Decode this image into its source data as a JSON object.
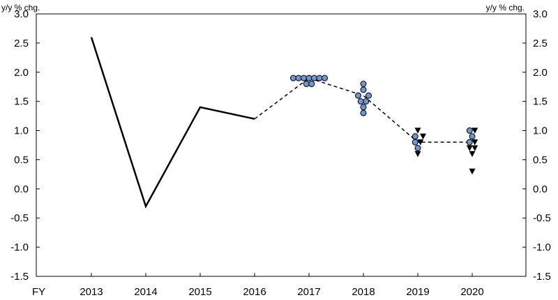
{
  "chart_data": {
    "type": "line",
    "y_unit_label_left": "y/y % chg.",
    "y_unit_label_right": "y/y % chg.",
    "x_prefix_label": "FY",
    "categories": [
      "2013",
      "2014",
      "2015",
      "2016",
      "2017",
      "2018",
      "2019",
      "2020"
    ],
    "ylim": [
      -1.5,
      3.0
    ],
    "yticks": [
      -1.5,
      -1.0,
      -0.5,
      0.0,
      0.5,
      1.0,
      1.5,
      2.0,
      2.5,
      3.0
    ],
    "ytick_labels": [
      "-1.5",
      "-1.0",
      "-0.5",
      "0.0",
      "0.5",
      "1.0",
      "1.5",
      "2.0",
      "2.5",
      "3.0"
    ],
    "grid": false,
    "actual_line": {
      "style": "solid",
      "points": [
        {
          "x": "2013",
          "y": 2.6
        },
        {
          "x": "2014",
          "y": -0.3
        },
        {
          "x": "2015",
          "y": 1.4
        },
        {
          "x": "2016",
          "y": 1.2
        }
      ]
    },
    "median_line": {
      "style": "dashed",
      "points": [
        {
          "x": "2016",
          "y": 1.2
        },
        {
          "x": "2017",
          "y": 1.9
        },
        {
          "x": "2018",
          "y": 1.6
        },
        {
          "x": "2019",
          "y": 0.8
        },
        {
          "x": "2020",
          "y": 0.8
        }
      ]
    },
    "circle_markers": {
      "color": "#6f96d2",
      "points": [
        {
          "x": "2017",
          "offset": -3,
          "y": 1.9
        },
        {
          "x": "2017",
          "offset": -2,
          "y": 1.9
        },
        {
          "x": "2017",
          "offset": -1,
          "y": 1.9
        },
        {
          "x": "2017",
          "offset": -0.5,
          "y": 1.8
        },
        {
          "x": "2017",
          "offset": 0,
          "y": 1.9
        },
        {
          "x": "2017",
          "offset": 0.5,
          "y": 1.8
        },
        {
          "x": "2017",
          "offset": 1,
          "y": 1.9
        },
        {
          "x": "2017",
          "offset": 2,
          "y": 1.9
        },
        {
          "x": "2017",
          "offset": 3,
          "y": 1.9
        },
        {
          "x": "2018",
          "offset": 0,
          "y": 1.8
        },
        {
          "x": "2018",
          "offset": 0,
          "y": 1.7
        },
        {
          "x": "2018",
          "offset": -1,
          "y": 1.6
        },
        {
          "x": "2018",
          "offset": 1,
          "y": 1.6
        },
        {
          "x": "2018",
          "offset": -0.5,
          "y": 1.5
        },
        {
          "x": "2018",
          "offset": 0.5,
          "y": 1.5
        },
        {
          "x": "2018",
          "offset": 0,
          "y": 1.4
        },
        {
          "x": "2018",
          "offset": 0,
          "y": 1.3
        },
        {
          "x": "2019",
          "offset": -0.5,
          "y": 0.9
        },
        {
          "x": "2019",
          "offset": -0.5,
          "y": 0.8
        },
        {
          "x": "2019",
          "offset": 0,
          "y": 0.7
        },
        {
          "x": "2020",
          "offset": -0.5,
          "y": 1.0
        },
        {
          "x": "2020",
          "offset": 0,
          "y": 0.9
        },
        {
          "x": "2020",
          "offset": -0.5,
          "y": 0.8
        }
      ]
    },
    "triangle_markers": {
      "color": "#000000",
      "points": [
        {
          "x": "2019",
          "offset": 0,
          "y": 1.0
        },
        {
          "x": "2019",
          "offset": 1,
          "y": 0.9
        },
        {
          "x": "2019",
          "offset": 0.5,
          "y": 0.8
        },
        {
          "x": "2019",
          "offset": 0,
          "y": 0.6
        },
        {
          "x": "2020",
          "offset": 0.5,
          "y": 1.0
        },
        {
          "x": "2020",
          "offset": 0.5,
          "y": 0.8
        },
        {
          "x": "2020",
          "offset": -0.5,
          "y": 0.7
        },
        {
          "x": "2020",
          "offset": 0.5,
          "y": 0.7
        },
        {
          "x": "2020",
          "offset": 0,
          "y": 0.6
        },
        {
          "x": "2020",
          "offset": 0,
          "y": 0.3
        }
      ]
    }
  }
}
